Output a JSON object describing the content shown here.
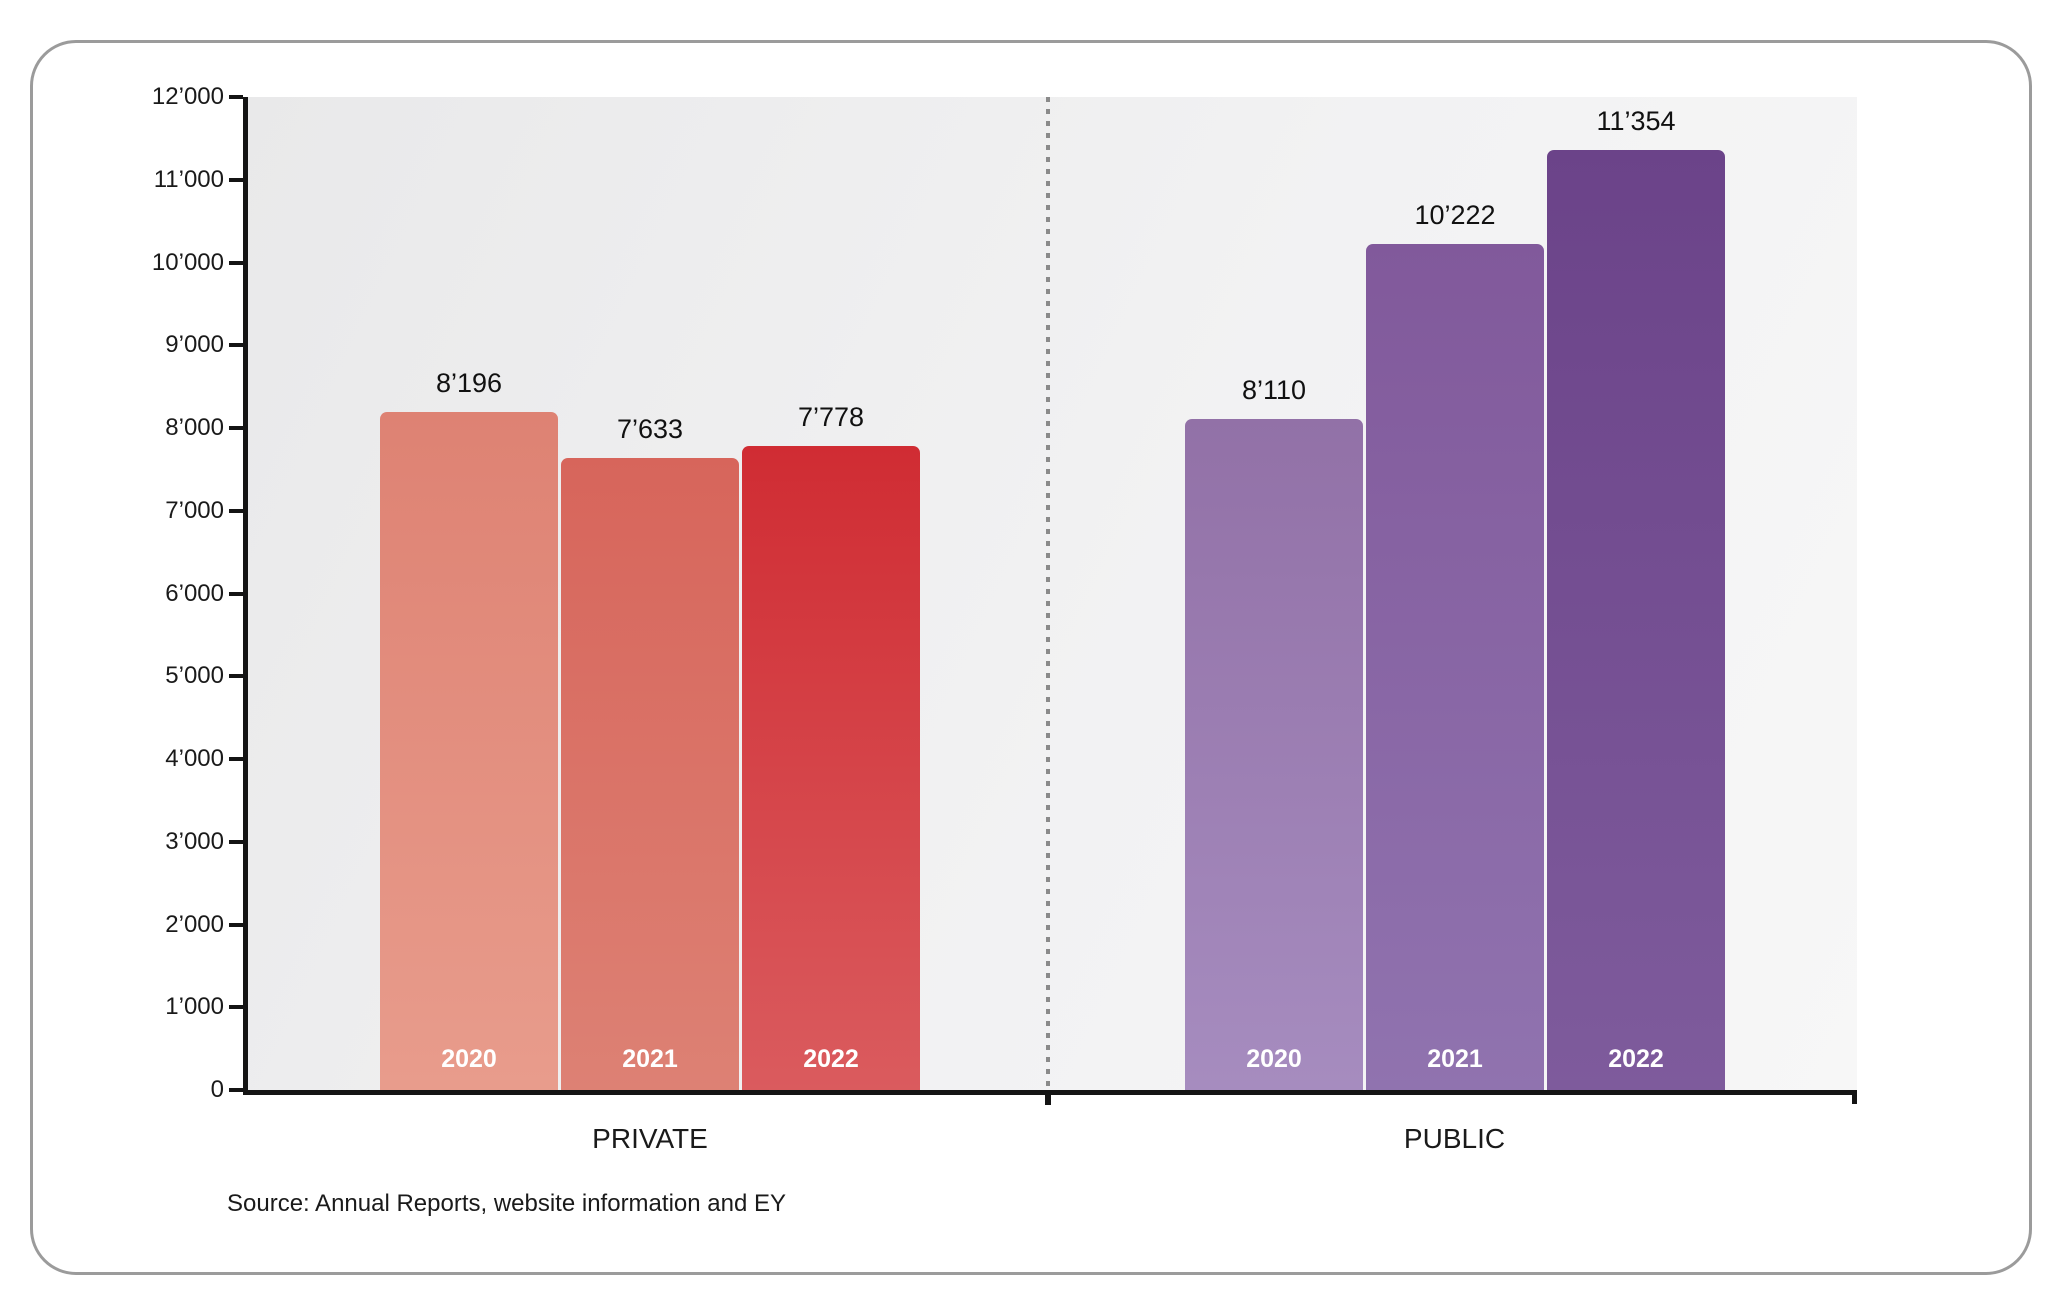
{
  "chart_data": {
    "type": "bar",
    "categories": [
      "2020",
      "2021",
      "2022"
    ],
    "series": [
      {
        "name": "PRIVATE",
        "values": [
          8196,
          7633,
          7778
        ],
        "value_labels": [
          "8’196",
          "7’633",
          "7’778"
        ],
        "bar_gradients": [
          {
            "top": "#DE8273",
            "bottom": "#E89C8C"
          },
          {
            "top": "#D7655B",
            "bottom": "#DD8174"
          },
          {
            "top": "#D02C33",
            "bottom": "#DA5B5E"
          }
        ]
      },
      {
        "name": "PUBLIC",
        "values": [
          8110,
          10222,
          11354
        ],
        "value_labels": [
          "8’110",
          "10’222",
          "11’354"
        ],
        "bar_gradients": [
          {
            "top": "#9271A7",
            "bottom": "#A68CBF"
          },
          {
            "top": "#81599B",
            "bottom": "#9073AF"
          },
          {
            "top": "#6B4389",
            "bottom": "#7E5B9C"
          }
        ]
      }
    ],
    "ylim": [
      0,
      12000
    ],
    "y_tick_step": 1000,
    "y_tick_labels": [
      "12’000",
      "11’000",
      "10’000",
      "9’000",
      "8’000",
      "7’000",
      "6’000",
      "5’000",
      "4’000",
      "3’000",
      "2’000",
      "1’000",
      "0"
    ],
    "grid": false,
    "legend": "none",
    "group_divider": "dashed",
    "source": "Source: Annual Reports, website information and EY"
  },
  "colors": {
    "axis": "#141414",
    "divider": "#8a8a8a",
    "card_border": "#9b9b9b",
    "text": "#1a1a1a",
    "year_label_text": "#ffffff"
  }
}
